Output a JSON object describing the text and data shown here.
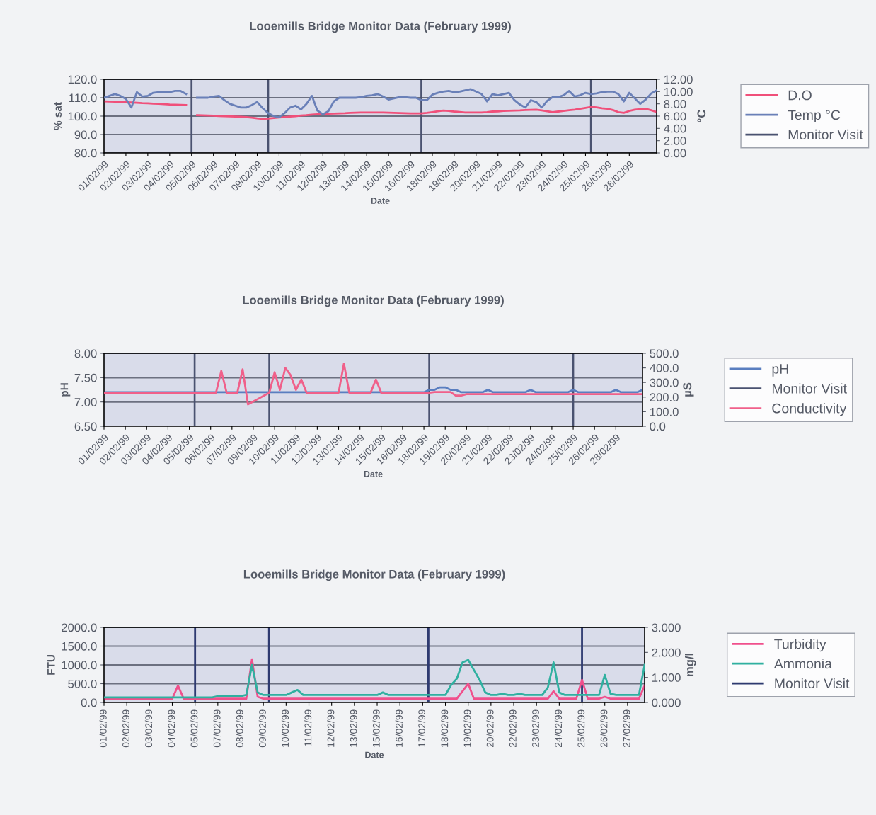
{
  "chart_data": [
    {
      "type": "line",
      "title": "Looemills Bridge Monitor Data (February 1999)",
      "xlabel": "Date",
      "ylabel": "% sat",
      "y2label": "°C",
      "categories": [
        "01/02/99",
        null,
        null,
        null,
        "02/02/99",
        null,
        null,
        null,
        "03/02/99",
        null,
        null,
        null,
        "04/02/99",
        null,
        null,
        null,
        "05/02/99",
        null,
        null,
        null,
        "06/02/99",
        null,
        null,
        null,
        "07/02/99",
        null,
        null,
        null,
        "09/02/99",
        null,
        null,
        null,
        "10/02/99",
        null,
        null,
        null,
        "11/02/99",
        null,
        null,
        null,
        "12/02/99",
        null,
        null,
        null,
        "13/02/99",
        null,
        null,
        null,
        "14/02/99",
        null,
        null,
        null,
        "15/02/99",
        null,
        null,
        null,
        "16/02/99",
        null,
        null,
        null,
        "18/02/99",
        null,
        null,
        null,
        "19/02/99",
        null,
        null,
        null,
        "20/02/99",
        null,
        null,
        null,
        "21/02/99",
        null,
        null,
        null,
        "22/02/99",
        null,
        null,
        null,
        "23/02/99",
        null,
        null,
        null,
        "24/02/99",
        null,
        null,
        null,
        "25/02/99",
        null,
        null,
        null,
        "26/02/99",
        null,
        null,
        null,
        "28/02/99",
        null,
        null,
        null,
        null,
        null
      ],
      "ylim": [
        80,
        120
      ],
      "yticks": [
        {
          "value": 80,
          "label": "80.0"
        },
        {
          "value": 90,
          "label": "90.0"
        },
        {
          "value": 100,
          "label": "100.0"
        },
        {
          "value": 110,
          "label": "110.0"
        },
        {
          "value": 120,
          "label": "120.0"
        }
      ],
      "y2lim": [
        0,
        12
      ],
      "y2ticks": [
        {
          "value": 0,
          "label": "0.00"
        },
        {
          "value": 2,
          "label": "2.00"
        },
        {
          "value": 4,
          "label": "4.00"
        },
        {
          "value": 6,
          "label": "6.00"
        },
        {
          "value": 8,
          "label": "8.00"
        },
        {
          "value": 10,
          "label": "10.00"
        },
        {
          "value": 12,
          "label": "12.00"
        }
      ],
      "grid": "y",
      "legend": "right",
      "line_style": "solid",
      "marker": "none",
      "series": [
        {
          "name": "D.O",
          "color": "#f0507a",
          "values": [
            108,
            107.9,
            107.8,
            107.6,
            107.5,
            107.4,
            107.3,
            107.1,
            107,
            106.8,
            106.7,
            106.5,
            106.3,
            106.2,
            106.1,
            106,
            null,
            100.5,
            100.4,
            100.3,
            100.2,
            100.1,
            100,
            99.9,
            99.8,
            99.7,
            99.5,
            99.2,
            98.8,
            98.5,
            98.7,
            99,
            99.3,
            99.5,
            99.8,
            100,
            100.3,
            100.5,
            100.8,
            101,
            101.1,
            101.3,
            101.4,
            101.5,
            101.6,
            101.8,
            101.9,
            102,
            102,
            102,
            102,
            102,
            101.9,
            101.8,
            101.7,
            101.6,
            101.5,
            101.5,
            101.5,
            101.8,
            102.2,
            102.6,
            103,
            102.8,
            102.5,
            102.3,
            102,
            102,
            102,
            102,
            102.2,
            102.5,
            102.6,
            102.8,
            102.9,
            103,
            103.1,
            103.3,
            103.4,
            103.5,
            103.1,
            102.6,
            102.2,
            102.5,
            102.8,
            103.2,
            103.5,
            104,
            104.5,
            105,
            104.8,
            104.3,
            104,
            103.3,
            102.2,
            101.8,
            102.8,
            103.5,
            103.8,
            104,
            103.2,
            102.2
          ]
        },
        {
          "name": "Temp °C",
          "color": "#6a80b8",
          "axis": "y2",
          "values": [
            9.0,
            9.3,
            9.6,
            9.3,
            8.8,
            7.4,
            9.9,
            9.2,
            9.3,
            9.8,
            9.9,
            9.9,
            9.9,
            10.1,
            10.1,
            9.6,
            null,
            9.0,
            9.0,
            9.0,
            9.2,
            9.3,
            8.6,
            8.0,
            7.7,
            7.4,
            7.4,
            7.8,
            8.3,
            7.3,
            6.5,
            6.0,
            5.8,
            6.5,
            7.4,
            7.7,
            7.1,
            8.0,
            9.3,
            6.9,
            6.3,
            6.8,
            8.4,
            9.0,
            9.0,
            9.0,
            9.0,
            9.1,
            9.3,
            9.4,
            9.6,
            9.2,
            8.7,
            8.9,
            9.1,
            9.1,
            9.0,
            9.0,
            8.6,
            8.6,
            9.5,
            9.8,
            10.0,
            10.1,
            9.9,
            10.0,
            10.2,
            10.4,
            10.0,
            9.6,
            8.4,
            9.6,
            9.4,
            9.6,
            9.8,
            8.6,
            7.9,
            7.4,
            8.6,
            8.3,
            7.4,
            8.5,
            9.1,
            9.1,
            9.4,
            10.1,
            9.2,
            9.4,
            9.8,
            9.6,
            9.7,
            9.9,
            10.0,
            10.0,
            9.6,
            8.4,
            9.8,
            8.9,
            8.0,
            8.7,
            9.7,
            10.2
          ]
        },
        {
          "name": "Monitor Visit",
          "type": "bar",
          "color": "#4a5270",
          "values": [
            null,
            null,
            null,
            null,
            null,
            null,
            null,
            null,
            null,
            null,
            null,
            null,
            null,
            null,
            null,
            null,
            120,
            null,
            null,
            null,
            null,
            null,
            null,
            null,
            null,
            null,
            null,
            null,
            null,
            null,
            120,
            null,
            null,
            null,
            null,
            null,
            null,
            null,
            null,
            null,
            null,
            null,
            null,
            null,
            null,
            null,
            null,
            null,
            null,
            null,
            null,
            null,
            null,
            null,
            null,
            null,
            null,
            null,
            120,
            null,
            null,
            null,
            null,
            null,
            null,
            null,
            null,
            null,
            null,
            null,
            null,
            null,
            null,
            null,
            null,
            null,
            null,
            null,
            null,
            null,
            null,
            null,
            null,
            null,
            null,
            null,
            null,
            null,
            null,
            120,
            null,
            null,
            null,
            null,
            null,
            null,
            null,
            null,
            null,
            null,
            null,
            null
          ]
        }
      ]
    },
    {
      "type": "line",
      "title": "Looemills Bridge Monitor Data (February 1999)",
      "xlabel": "Date",
      "ylabel": "pH",
      "y2label": "µS",
      "categories": [
        "01/02/99",
        null,
        null,
        null,
        "02/02/99",
        null,
        null,
        null,
        "03/02/99",
        null,
        null,
        null,
        "04/02/99",
        null,
        null,
        null,
        "05/02/99",
        null,
        null,
        null,
        "06/02/99",
        null,
        null,
        null,
        "07/02/99",
        null,
        null,
        null,
        "09/02/99",
        null,
        null,
        null,
        "10/02/99",
        null,
        null,
        null,
        "11/02/99",
        null,
        null,
        null,
        "12/02/99",
        null,
        null,
        null,
        "13/02/99",
        null,
        null,
        null,
        "14/02/99",
        null,
        null,
        null,
        "15/02/99",
        null,
        null,
        null,
        "16/02/99",
        null,
        null,
        null,
        "18/02/99",
        null,
        null,
        null,
        "19/02/99",
        null,
        null,
        null,
        "20/02/99",
        null,
        null,
        null,
        "21/02/99",
        null,
        null,
        null,
        "22/02/99",
        null,
        null,
        null,
        "23/02/99",
        null,
        null,
        null,
        "24/02/99",
        null,
        null,
        null,
        "25/02/99",
        null,
        null,
        null,
        "26/02/99",
        null,
        null,
        null,
        "28/02/99",
        null,
        null,
        null,
        null,
        null
      ],
      "ylim": [
        6.5,
        8.0
      ],
      "yticks": [
        {
          "value": 6.5,
          "label": "6.50"
        },
        {
          "value": 7.0,
          "label": "7.00"
        },
        {
          "value": 7.5,
          "label": "7.50"
        },
        {
          "value": 8.0,
          "label": "8.00"
        }
      ],
      "y2lim": [
        0,
        500
      ],
      "y2ticks": [
        {
          "value": 0,
          "label": "0.0"
        },
        {
          "value": 100,
          "label": "100.0"
        },
        {
          "value": 200,
          "label": "200.0"
        },
        {
          "value": 300,
          "label": "300.0"
        },
        {
          "value": 400,
          "label": "400.0"
        },
        {
          "value": 500,
          "label": "500.0"
        }
      ],
      "grid": "y",
      "legend": "right",
      "line_style": "solid",
      "marker": "none",
      "series": [
        {
          "name": "pH",
          "color": "#5a7ec0",
          "values": [
            7.2,
            7.2,
            7.2,
            7.2,
            7.2,
            7.2,
            7.2,
            7.2,
            7.2,
            7.2,
            7.2,
            7.2,
            7.2,
            7.2,
            7.2,
            7.2,
            7.2,
            7.2,
            7.2,
            7.2,
            7.2,
            7.2,
            7.2,
            7.2,
            7.2,
            7.2,
            7.2,
            7.2,
            7.2,
            7.2,
            7.2,
            7.2,
            7.2,
            7.2,
            7.2,
            7.2,
            7.2,
            7.2,
            7.2,
            7.2,
            7.2,
            7.2,
            7.2,
            7.2,
            7.2,
            7.2,
            7.2,
            7.2,
            7.2,
            7.2,
            7.2,
            7.2,
            7.2,
            7.2,
            7.2,
            7.2,
            7.2,
            7.2,
            7.2,
            7.2,
            7.2,
            7.25,
            7.25,
            7.3,
            7.3,
            7.25,
            7.25,
            7.2,
            7.2,
            7.2,
            7.2,
            7.2,
            7.25,
            7.2,
            7.2,
            7.2,
            7.2,
            7.2,
            7.2,
            7.2,
            7.25,
            7.2,
            7.2,
            7.2,
            7.2,
            7.2,
            7.2,
            7.2,
            7.25,
            7.2,
            7.2,
            7.2,
            7.2,
            7.2,
            7.2,
            7.2,
            7.25,
            7.2,
            7.2,
            7.2,
            7.2,
            7.25
          ]
        },
        {
          "name": "Monitor Visit",
          "type": "bar",
          "color": "#4a5270",
          "values": [
            null,
            null,
            null,
            null,
            null,
            null,
            null,
            null,
            null,
            null,
            null,
            null,
            null,
            null,
            null,
            null,
            null,
            8.0,
            null,
            null,
            null,
            null,
            null,
            null,
            null,
            null,
            null,
            null,
            null,
            null,
            null,
            8.0,
            null,
            null,
            null,
            null,
            null,
            null,
            null,
            null,
            null,
            null,
            null,
            null,
            null,
            null,
            null,
            null,
            null,
            null,
            null,
            null,
            null,
            null,
            null,
            null,
            null,
            null,
            null,
            null,
            null,
            8.0,
            null,
            null,
            null,
            null,
            null,
            null,
            null,
            null,
            null,
            null,
            null,
            null,
            null,
            null,
            null,
            null,
            null,
            null,
            null,
            null,
            null,
            null,
            null,
            null,
            null,
            null,
            8.0,
            null,
            null,
            null,
            null,
            null,
            null,
            null,
            null,
            null,
            null,
            null,
            null,
            null
          ]
        },
        {
          "name": "Conductivity",
          "color": "#f0608a",
          "axis": "y2",
          "values": [
            230,
            230,
            230,
            230,
            230,
            230,
            230,
            230,
            230,
            230,
            230,
            230,
            230,
            230,
            230,
            230,
            230,
            230,
            230,
            230,
            230,
            230,
            380,
            230,
            230,
            230,
            390,
            150,
            170,
            190,
            210,
            230,
            370,
            250,
            400,
            350,
            250,
            320,
            230,
            230,
            230,
            230,
            230,
            230,
            230,
            430,
            230,
            230,
            230,
            230,
            230,
            320,
            230,
            230,
            230,
            230,
            230,
            230,
            230,
            230,
            230,
            230,
            235,
            235,
            235,
            235,
            210,
            210,
            220,
            220,
            220,
            220,
            220,
            220,
            220,
            220,
            220,
            220,
            220,
            220,
            220,
            220,
            220,
            220,
            220,
            220,
            220,
            220,
            220,
            220,
            220,
            220,
            220,
            220,
            220,
            220,
            220,
            220,
            220,
            220,
            220,
            220
          ]
        }
      ]
    },
    {
      "type": "line",
      "title": "Looemills Bridge Monitor Data (February 1999)",
      "xlabel": "Date",
      "ylabel": "FTU",
      "y2label": "mg/l",
      "categories": [
        "01/02/99",
        null,
        null,
        null,
        "02/02/99",
        null,
        null,
        null,
        "03/02/99",
        null,
        null,
        null,
        "04/02/99",
        null,
        null,
        null,
        "05/02/99",
        null,
        null,
        null,
        "07/02/99",
        null,
        null,
        null,
        "08/02/99",
        null,
        null,
        null,
        "09/02/99",
        null,
        null,
        null,
        "10/02/99",
        null,
        null,
        null,
        "11/02/99",
        null,
        null,
        null,
        "12/02/99",
        null,
        null,
        null,
        "13/02/99",
        null,
        null,
        null,
        "15/02/99",
        null,
        null,
        null,
        "16/02/99",
        null,
        null,
        null,
        "17/02/99",
        null,
        null,
        null,
        "18/02/99",
        null,
        null,
        null,
        "19/02/99",
        null,
        null,
        null,
        "20/02/99",
        null,
        null,
        null,
        "22/02/99",
        null,
        null,
        null,
        "23/02/99",
        null,
        null,
        null,
        "24/02/99",
        null,
        null,
        null,
        "25/02/99",
        null,
        null,
        null,
        "26/02/99",
        null,
        null,
        null,
        "27/02/99",
        null,
        null,
        null
      ],
      "ylim": [
        0,
        2000
      ],
      "yticks": [
        {
          "value": 0,
          "label": "0.0"
        },
        {
          "value": 500,
          "label": "500.0"
        },
        {
          "value": 1000,
          "label": "1000.0"
        },
        {
          "value": 1500,
          "label": "1500.0"
        },
        {
          "value": 2000,
          "label": "2000.0"
        }
      ],
      "y2lim": [
        0,
        3
      ],
      "y2ticks": [
        {
          "value": 0,
          "label": "0.000"
        },
        {
          "value": 1,
          "label": "1.000"
        },
        {
          "value": 2,
          "label": "2.000"
        },
        {
          "value": 3,
          "label": "3.000"
        }
      ],
      "grid": "y",
      "legend": "right",
      "line_style": "solid",
      "marker": "none",
      "series": [
        {
          "name": "Turbidity",
          "color": "#f0508c",
          "values": [
            100,
            100,
            100,
            100,
            100,
            100,
            100,
            100,
            100,
            100,
            100,
            100,
            100,
            450,
            100,
            100,
            100,
            100,
            100,
            100,
            100,
            100,
            100,
            100,
            100,
            100,
            1150,
            150,
            100,
            100,
            100,
            100,
            100,
            100,
            100,
            100,
            100,
            100,
            100,
            100,
            100,
            100,
            100,
            100,
            100,
            100,
            100,
            100,
            100,
            100,
            100,
            100,
            100,
            100,
            100,
            100,
            100,
            100,
            100,
            100,
            100,
            100,
            100,
            300,
            500,
            100,
            100,
            100,
            100,
            100,
            100,
            100,
            100,
            100,
            100,
            100,
            100,
            100,
            100,
            300,
            100,
            100,
            100,
            100,
            600,
            100,
            100,
            100,
            150,
            100,
            100,
            100,
            100,
            100,
            100,
            450
          ]
        },
        {
          "name": "Ammonia",
          "color": "#30b0a0",
          "axis": "y2",
          "values": [
            0.2,
            0.2,
            0.2,
            0.2,
            0.2,
            0.2,
            0.2,
            0.2,
            0.2,
            0.2,
            0.2,
            0.2,
            0.2,
            0.2,
            0.2,
            0.2,
            0.2,
            0.2,
            0.2,
            0.2,
            0.25,
            0.25,
            0.25,
            0.25,
            0.25,
            0.3,
            1.5,
            0.4,
            0.3,
            0.3,
            0.3,
            0.3,
            0.3,
            0.4,
            0.5,
            0.3,
            0.3,
            0.3,
            0.3,
            0.3,
            0.3,
            0.3,
            0.3,
            0.3,
            0.3,
            0.3,
            0.3,
            0.3,
            0.3,
            0.4,
            0.3,
            0.3,
            0.3,
            0.3,
            0.3,
            0.3,
            0.3,
            0.3,
            0.3,
            0.3,
            0.3,
            0.7,
            0.95,
            1.6,
            1.7,
            1.3,
            0.9,
            0.4,
            0.3,
            0.3,
            0.35,
            0.3,
            0.3,
            0.35,
            0.3,
            0.3,
            0.3,
            0.3,
            0.6,
            1.6,
            0.4,
            0.3,
            0.3,
            0.3,
            0.3,
            0.3,
            0.3,
            0.3,
            1.1,
            0.35,
            0.3,
            0.3,
            0.3,
            0.3,
            0.3,
            1.5
          ]
        },
        {
          "name": "Monitor Visit",
          "type": "bar",
          "color": "#2e3a70",
          "values": [
            null,
            null,
            null,
            null,
            null,
            null,
            null,
            null,
            null,
            null,
            null,
            null,
            null,
            null,
            null,
            null,
            2000,
            null,
            null,
            null,
            null,
            null,
            null,
            null,
            null,
            null,
            null,
            null,
            null,
            2000,
            null,
            null,
            null,
            null,
            null,
            null,
            null,
            null,
            null,
            null,
            null,
            null,
            null,
            null,
            null,
            null,
            null,
            null,
            null,
            null,
            null,
            null,
            null,
            null,
            null,
            null,
            null,
            2000,
            null,
            null,
            null,
            null,
            null,
            null,
            null,
            null,
            null,
            null,
            null,
            null,
            null,
            null,
            null,
            null,
            null,
            null,
            null,
            null,
            null,
            null,
            null,
            null,
            null,
            null,
            2000,
            null,
            null,
            null,
            null,
            null,
            null,
            null,
            null,
            null,
            null,
            null
          ]
        }
      ]
    }
  ]
}
